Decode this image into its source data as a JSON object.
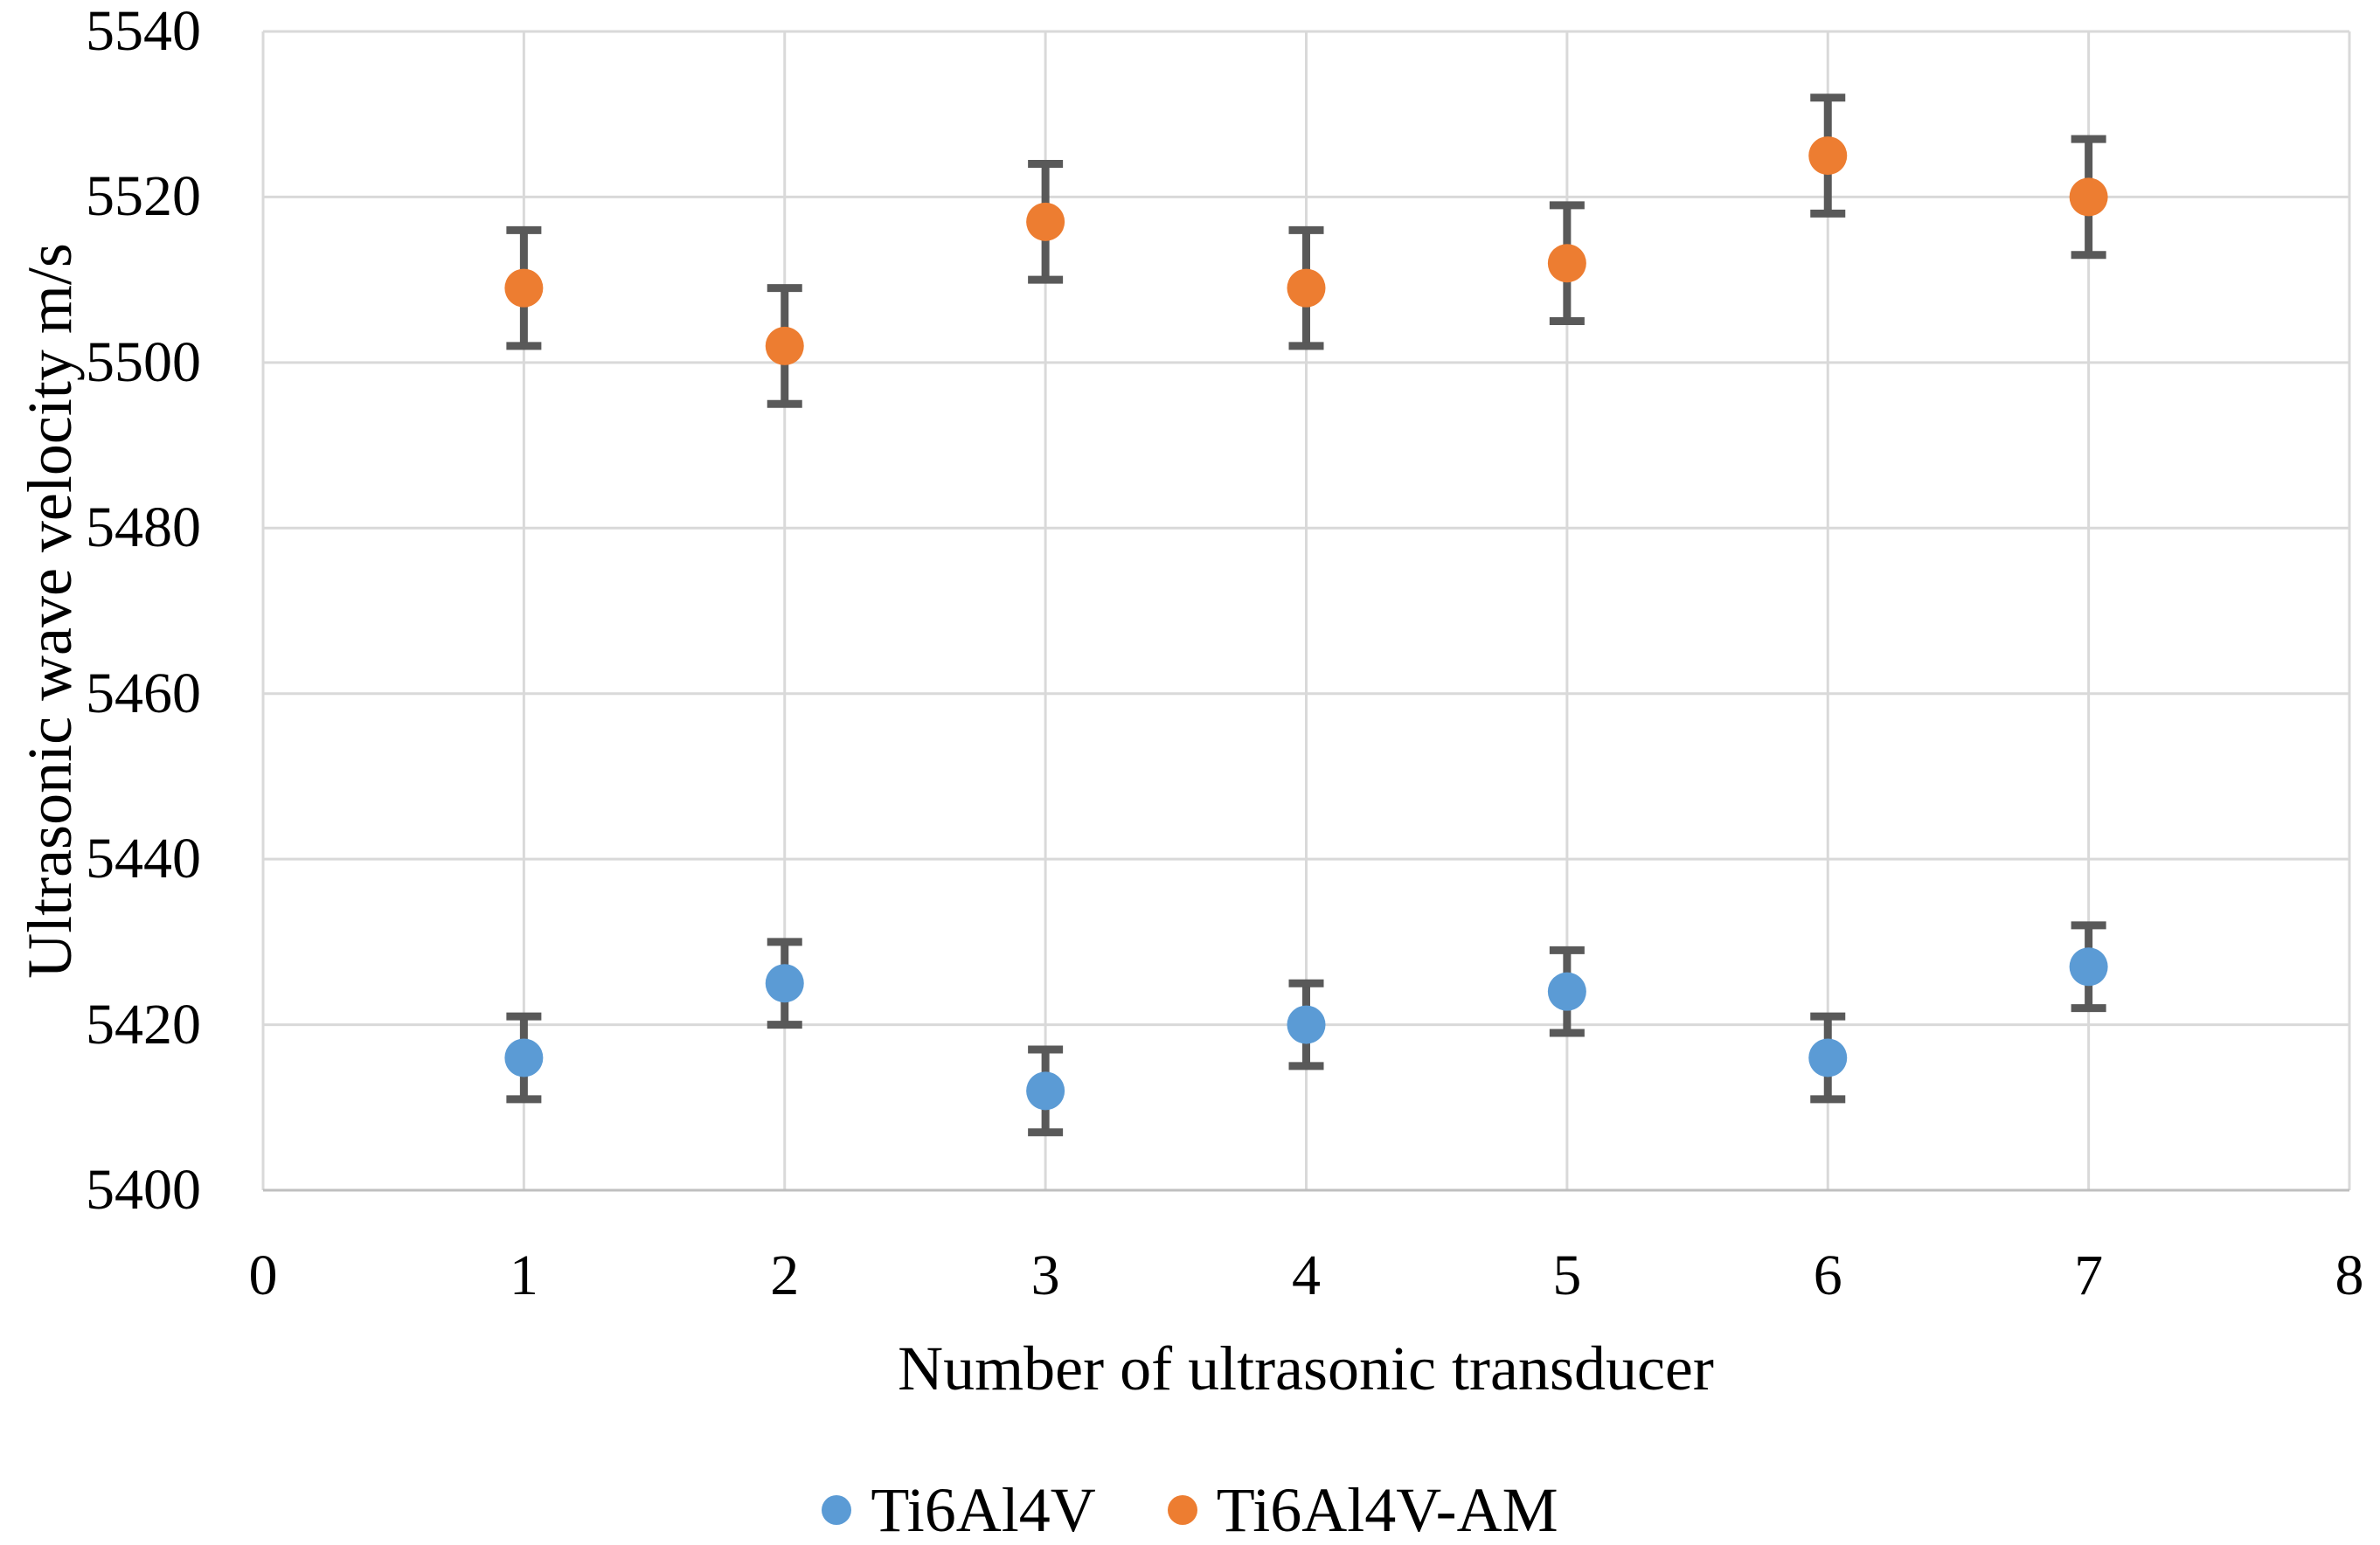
{
  "chart_data": {
    "type": "scatter",
    "title": "",
    "xlabel": "Number of ultrasonic transducer",
    "ylabel": "Ultrasonic wave velocity m/s",
    "xlim": [
      0,
      8
    ],
    "ylim": [
      5400,
      5540
    ],
    "x_ticks": [
      0,
      1,
      2,
      3,
      4,
      5,
      6,
      7,
      8
    ],
    "y_ticks": [
      5400,
      5420,
      5440,
      5460,
      5480,
      5500,
      5520,
      5540
    ],
    "grid": true,
    "legend_position": "bottom-center",
    "x": [
      1,
      2,
      3,
      4,
      5,
      6,
      7
    ],
    "series": [
      {
        "name": "Ti6Al4V",
        "color": "#5B9BD5",
        "values": [
          5416,
          5425,
          5412,
          5420,
          5424,
          5416,
          5427
        ],
        "error": [
          5,
          5,
          5,
          5,
          5,
          5,
          5
        ]
      },
      {
        "name": "Ti6Al4V-AM",
        "color": "#ED7D31",
        "values": [
          5509,
          5502,
          5517,
          5509,
          5512,
          5525,
          5520
        ],
        "error": [
          7,
          7,
          7,
          7,
          7,
          7,
          7
        ]
      }
    ],
    "colors": {
      "error_bar": "#595959",
      "gridline": "#D9D9D9",
      "axis_line": "#BFBFBF",
      "text": "#000000",
      "background": "#FFFFFF"
    }
  }
}
